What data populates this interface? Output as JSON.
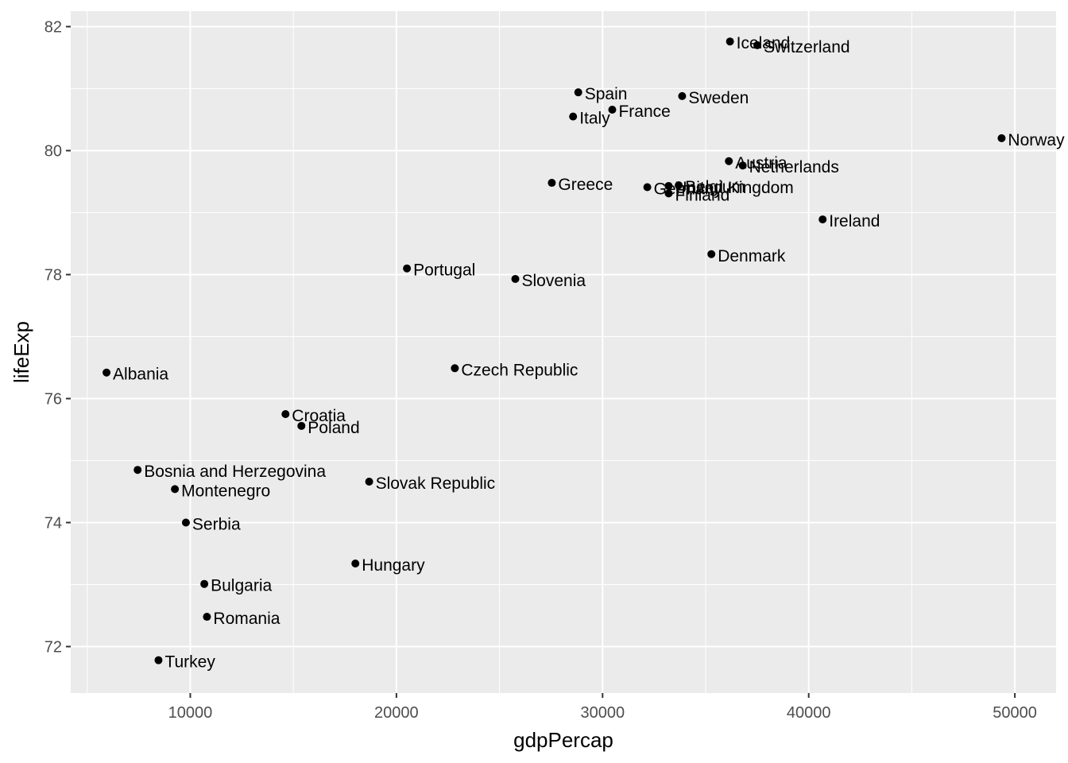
{
  "chart_data": {
    "type": "scatter",
    "title": "",
    "xlabel": "gdpPercap",
    "ylabel": "lifeExp",
    "xlim": [
      4200,
      52000
    ],
    "ylim": [
      71.25,
      82.25
    ],
    "x_ticks": [
      10000,
      20000,
      30000,
      40000,
      50000
    ],
    "x_tick_labels": [
      "10000",
      "20000",
      "30000",
      "40000",
      "50000"
    ],
    "x_minor_ticks": [
      5000,
      15000,
      25000,
      35000,
      45000
    ],
    "y_ticks": [
      72,
      74,
      76,
      78,
      80,
      82
    ],
    "y_tick_labels": [
      "72",
      "74",
      "76",
      "78",
      "80",
      "82"
    ],
    "y_minor_ticks": [
      73,
      75,
      77,
      79,
      81
    ],
    "grid": true,
    "legend": "none",
    "colors": {
      "panel": "#ebebeb",
      "grid": "#ffffff",
      "point": "#000000",
      "tick_text": "#4d4d4d"
    },
    "points": [
      {
        "label": "Albania",
        "x": 5937,
        "y": 76.42
      },
      {
        "label": "Austria",
        "x": 36126,
        "y": 79.83
      },
      {
        "label": "Belgium",
        "x": 33693,
        "y": 79.44
      },
      {
        "label": "Bosnia and Herzegovina",
        "x": 7446,
        "y": 74.85
      },
      {
        "label": "Bulgaria",
        "x": 10681,
        "y": 73.01
      },
      {
        "label": "Croatia",
        "x": 14619,
        "y": 75.75
      },
      {
        "label": "Czech Republic",
        "x": 22833,
        "y": 76.49
      },
      {
        "label": "Denmark",
        "x": 35278,
        "y": 78.33
      },
      {
        "label": "Finland",
        "x": 33207,
        "y": 79.31
      },
      {
        "label": "France",
        "x": 30470,
        "y": 80.66
      },
      {
        "label": "Germany",
        "x": 32170,
        "y": 79.41
      },
      {
        "label": "Greece",
        "x": 27538,
        "y": 79.48
      },
      {
        "label": "Hungary",
        "x": 18009,
        "y": 73.34
      },
      {
        "label": "Iceland",
        "x": 36181,
        "y": 81.76
      },
      {
        "label": "Ireland",
        "x": 40676,
        "y": 78.89
      },
      {
        "label": "Italy",
        "x": 28570,
        "y": 80.55
      },
      {
        "label": "Montenegro",
        "x": 9254,
        "y": 74.54
      },
      {
        "label": "Netherlands",
        "x": 36798,
        "y": 79.76
      },
      {
        "label": "Norway",
        "x": 49357,
        "y": 80.2
      },
      {
        "label": "Poland",
        "x": 15390,
        "y": 75.56
      },
      {
        "label": "Portugal",
        "x": 20510,
        "y": 78.1
      },
      {
        "label": "Romania",
        "x": 10808,
        "y": 72.48
      },
      {
        "label": "Serbia",
        "x": 9787,
        "y": 74.0
      },
      {
        "label": "Slovak Republic",
        "x": 18678,
        "y": 74.66
      },
      {
        "label": "Slovenia",
        "x": 25768,
        "y": 77.93
      },
      {
        "label": "Spain",
        "x": 28821,
        "y": 80.94
      },
      {
        "label": "Sweden",
        "x": 33860,
        "y": 80.88
      },
      {
        "label": "Switzerland",
        "x": 37506,
        "y": 81.7
      },
      {
        "label": "Turkey",
        "x": 8458,
        "y": 71.78
      },
      {
        "label": "United Kingdom",
        "x": 33203,
        "y": 79.43
      }
    ]
  }
}
